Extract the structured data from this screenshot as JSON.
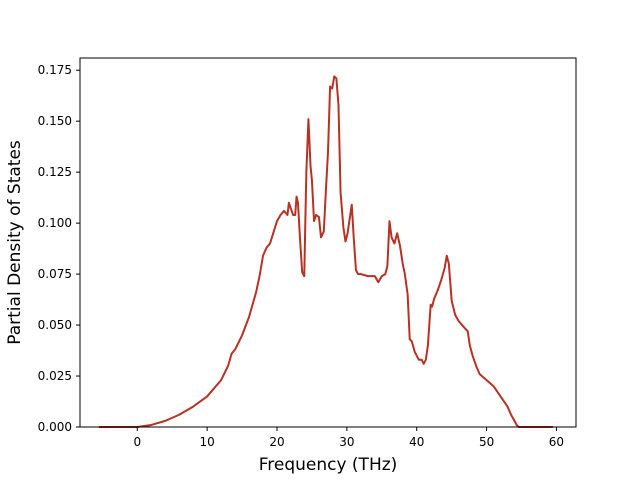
{
  "chart_data": {
    "type": "line",
    "title": "",
    "xlabel": "Frequency (THz)",
    "ylabel": "Partial Density of States",
    "xlim": [
      -8.2,
      62.8
    ],
    "ylim": [
      0,
      0.181
    ],
    "xticks": [
      0,
      10,
      20,
      30,
      40,
      50,
      60
    ],
    "xtick_labels": [
      "0",
      "10",
      "20",
      "30",
      "40",
      "50",
      "60"
    ],
    "yticks": [
      0,
      0.025,
      0.05,
      0.075,
      0.1,
      0.125,
      0.15,
      0.175
    ],
    "ytick_labels": [
      "0.000",
      "0.025",
      "0.050",
      "0.075",
      "0.100",
      "0.125",
      "0.150",
      "0.175"
    ],
    "grid": false,
    "legend": "none",
    "series": [
      {
        "color": "#b83224",
        "x": [
          -5.5,
          0,
          2,
          4,
          6,
          8,
          10,
          12,
          13,
          13.5,
          14,
          15,
          16,
          17,
          17.5,
          18,
          18.5,
          19,
          20,
          20.5,
          21,
          21.5,
          21.7,
          22,
          22.3,
          22.6,
          22.8,
          23,
          23.3,
          23.6,
          23.9,
          24.2,
          24.5,
          24.8,
          25,
          25.3,
          25.6,
          26,
          26.3,
          26.7,
          27,
          27.3,
          27.6,
          27.9,
          28.2,
          28.5,
          28.8,
          29.1,
          29.5,
          29.8,
          30.1,
          30.4,
          30.7,
          31,
          31.3,
          31.6,
          32,
          33,
          34,
          34.5,
          35,
          35.5,
          35.8,
          36.1,
          36.4,
          36.8,
          37.2,
          37.6,
          38,
          38.3,
          38.7,
          39,
          39.3,
          39.7,
          40,
          40.3,
          40.7,
          41,
          41.3,
          41.6,
          42,
          42.2,
          42.5,
          43,
          43.5,
          44,
          44.3,
          44.6,
          45,
          45.5,
          46,
          46.5,
          47,
          47.3,
          47.6,
          48,
          48.5,
          49,
          50,
          51,
          52,
          53,
          53.5,
          54,
          54.3,
          54.6,
          56,
          58,
          59.5
        ],
        "y": [
          0,
          0,
          0.001,
          0.003,
          0.006,
          0.01,
          0.015,
          0.023,
          0.03,
          0.036,
          0.038,
          0.045,
          0.054,
          0.066,
          0.074,
          0.084,
          0.088,
          0.09,
          0.101,
          0.104,
          0.106,
          0.104,
          0.11,
          0.107,
          0.104,
          0.104,
          0.113,
          0.11,
          0.092,
          0.076,
          0.074,
          0.125,
          0.151,
          0.128,
          0.121,
          0.101,
          0.104,
          0.103,
          0.093,
          0.096,
          0.116,
          0.135,
          0.167,
          0.166,
          0.172,
          0.171,
          0.158,
          0.115,
          0.098,
          0.091,
          0.095,
          0.102,
          0.109,
          0.092,
          0.077,
          0.075,
          0.075,
          0.074,
          0.074,
          0.071,
          0.074,
          0.075,
          0.079,
          0.101,
          0.093,
          0.09,
          0.095,
          0.089,
          0.08,
          0.075,
          0.065,
          0.043,
          0.042,
          0.037,
          0.035,
          0.033,
          0.033,
          0.031,
          0.033,
          0.04,
          0.06,
          0.059,
          0.063,
          0.067,
          0.072,
          0.078,
          0.084,
          0.08,
          0.062,
          0.055,
          0.052,
          0.05,
          0.048,
          0.047,
          0.04,
          0.035,
          0.03,
          0.026,
          0.023,
          0.02,
          0.015,
          0.01,
          0.006,
          0.003,
          0.001,
          0,
          0,
          0,
          0
        ]
      }
    ]
  }
}
